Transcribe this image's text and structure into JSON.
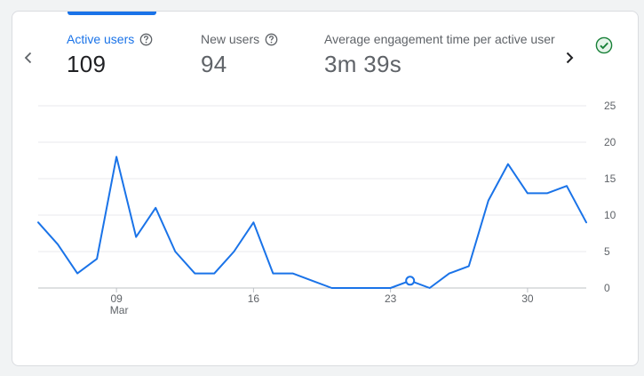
{
  "metrics": [
    {
      "label": "Active users",
      "value": "109"
    },
    {
      "label": "New users",
      "value": "94"
    },
    {
      "label": "Average engagement time per active user",
      "value": "3m 39s"
    }
  ],
  "icons": {
    "prev": "chevron-left-icon",
    "next": "chevron-right-icon",
    "help": "help-circle-icon",
    "status": "check-circle-icon"
  },
  "colors": {
    "accent": "#1a73e8",
    "status_green": "#188038"
  },
  "chart_data": {
    "type": "line",
    "x": [
      "Mar 05",
      "Mar 06",
      "Mar 07",
      "Mar 08",
      "Mar 09",
      "Mar 10",
      "Mar 11",
      "Mar 12",
      "Mar 13",
      "Mar 14",
      "Mar 15",
      "Mar 16",
      "Mar 17",
      "Mar 18",
      "Mar 19",
      "Mar 20",
      "Mar 21",
      "Mar 22",
      "Mar 23",
      "Mar 24",
      "Mar 25",
      "Mar 26",
      "Mar 27",
      "Mar 28",
      "Mar 29",
      "Mar 30",
      "Mar 31",
      "Apr 01",
      "Apr 02"
    ],
    "series": [
      {
        "values": [
          9,
          6,
          2,
          4,
          18,
          7,
          11,
          5,
          2,
          2,
          5,
          9,
          2,
          2,
          1,
          0,
          0,
          0,
          0,
          1,
          0,
          2,
          3,
          12,
          17,
          13,
          13,
          14,
          9
        ]
      }
    ],
    "x_tick_labels": [
      {
        "index": 4,
        "label": "09",
        "sublabel": "Mar"
      },
      {
        "index": 11,
        "label": "16"
      },
      {
        "index": 18,
        "label": "23"
      },
      {
        "index": 25,
        "label": "30"
      }
    ],
    "y_ticks": [
      "0",
      "5",
      "10",
      "15",
      "20",
      "25"
    ],
    "ylim": [
      0,
      25
    ],
    "highlight_index": 19,
    "grid": true,
    "y_axis_position": "right"
  }
}
